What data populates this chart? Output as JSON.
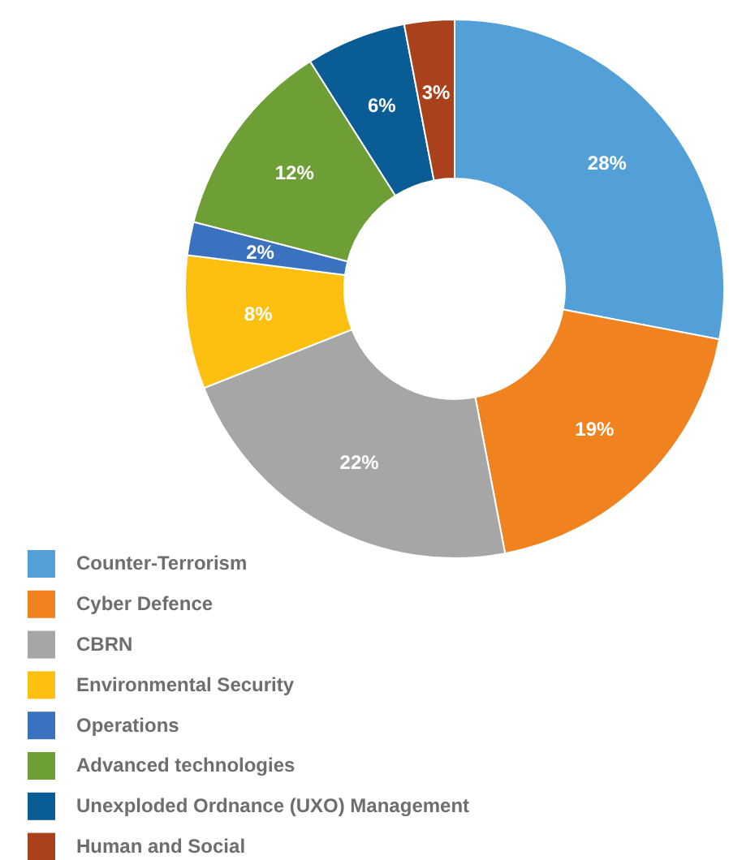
{
  "chart_data": {
    "type": "donut",
    "categories": [
      "Counter-Terrorism",
      "Cyber Defence",
      "CBRN",
      "Environmental Security",
      "Operations",
      "Advanced technologies",
      "Unexploded Ordnance (UXO) Management",
      "Human and Social"
    ],
    "values": [
      28,
      19,
      22,
      8,
      2,
      12,
      6,
      3
    ],
    "value_labels": [
      "28%",
      "19%",
      "22%",
      "8%",
      "2%",
      "12%",
      "6%",
      "3%"
    ],
    "colors": [
      "#539fd8",
      "#f08220",
      "#a6a6a6",
      "#fdc010",
      "#3a72c0",
      "#6e9e36",
      "#0a5c95",
      "#a9421c"
    ],
    "legend": "bottom"
  }
}
